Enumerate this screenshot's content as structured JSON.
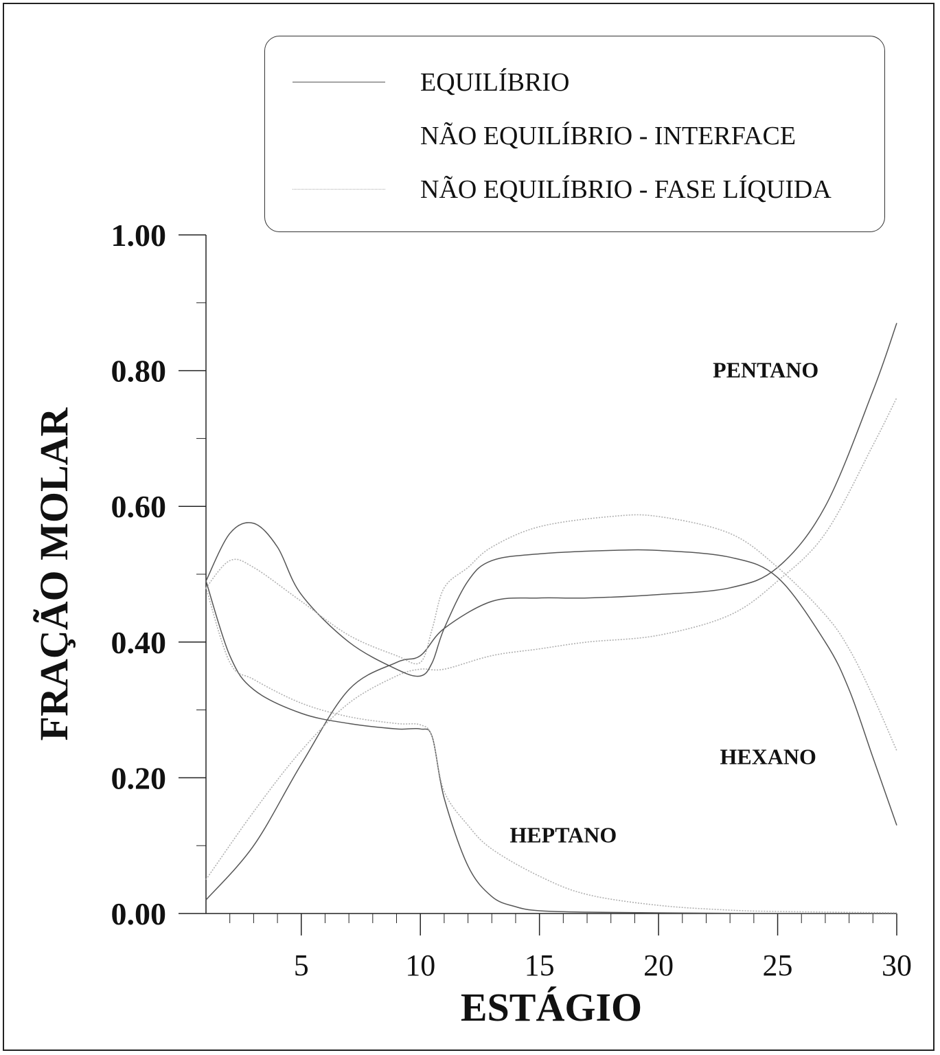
{
  "legend": {
    "items": [
      {
        "label": "EQUILÍBRIO",
        "style": "solid-dark"
      },
      {
        "label": "NÃO EQUILÍBRIO - INTERFACE",
        "style": "none"
      },
      {
        "label": "NÃO EQUILÍBRIO - FASE LÍQUIDA",
        "style": "dotted-light"
      }
    ]
  },
  "chart_data": {
    "type": "line",
    "xlabel": "ESTÁGIO",
    "ylabel": "FRAÇÃO MOLAR",
    "xlim": [
      1,
      30
    ],
    "ylim": [
      0,
      1
    ],
    "x_ticks": [
      5,
      10,
      15,
      20,
      25,
      30
    ],
    "y_ticks": [
      0.0,
      0.2,
      0.4,
      0.6,
      0.8,
      1.0
    ],
    "y_tick_labels": [
      "0.00",
      "0.20",
      "0.40",
      "0.60",
      "0.80",
      "1.00"
    ],
    "grid": false,
    "legend_position": "top-right",
    "annotations": [
      {
        "text": "PENTANO",
        "x": 24.5,
        "y": 0.79
      },
      {
        "text": "HEXANO",
        "x": 24.6,
        "y": 0.22
      },
      {
        "text": "HEPTANO",
        "x": 16.0,
        "y": 0.105
      }
    ],
    "colors": {
      "equilibrio": "#555555",
      "interface": "#777777",
      "fase_liquida": "#b0b0b0"
    },
    "series": [
      {
        "name": "EQUILÍBRIO",
        "component": "PENTANO",
        "style": "solid",
        "points": [
          [
            1,
            0.02
          ],
          [
            3,
            0.1
          ],
          [
            5,
            0.22
          ],
          [
            7,
            0.33
          ],
          [
            9,
            0.37
          ],
          [
            10,
            0.38
          ],
          [
            11,
            0.42
          ],
          [
            13,
            0.46
          ],
          [
            15,
            0.465
          ],
          [
            17,
            0.465
          ],
          [
            20,
            0.47
          ],
          [
            23,
            0.48
          ],
          [
            25,
            0.51
          ],
          [
            27,
            0.6
          ],
          [
            29,
            0.77
          ],
          [
            30,
            0.87
          ]
        ]
      },
      {
        "name": "NÃO EQUILÍBRIO - FASE LÍQUIDA",
        "component": "PENTANO",
        "style": "dotted",
        "points": [
          [
            1,
            0.05
          ],
          [
            3,
            0.15
          ],
          [
            5,
            0.24
          ],
          [
            7,
            0.31
          ],
          [
            9,
            0.35
          ],
          [
            10,
            0.36
          ],
          [
            11,
            0.36
          ],
          [
            13,
            0.38
          ],
          [
            15,
            0.39
          ],
          [
            17,
            0.4
          ],
          [
            20,
            0.41
          ],
          [
            23,
            0.44
          ],
          [
            25,
            0.49
          ],
          [
            27,
            0.56
          ],
          [
            29,
            0.69
          ],
          [
            30,
            0.76
          ]
        ]
      },
      {
        "name": "EQUILÍBRIO",
        "component": "HEXANO",
        "style": "solid",
        "points": [
          [
            1,
            0.49
          ],
          [
            2,
            0.56
          ],
          [
            3,
            0.575
          ],
          [
            4,
            0.54
          ],
          [
            5,
            0.47
          ],
          [
            7,
            0.4
          ],
          [
            9,
            0.36
          ],
          [
            10,
            0.35
          ],
          [
            10.5,
            0.37
          ],
          [
            11,
            0.42
          ],
          [
            12,
            0.49
          ],
          [
            13,
            0.52
          ],
          [
            15,
            0.53
          ],
          [
            18,
            0.535
          ],
          [
            20,
            0.535
          ],
          [
            23,
            0.525
          ],
          [
            25,
            0.495
          ],
          [
            27,
            0.4
          ],
          [
            28,
            0.33
          ],
          [
            29,
            0.23
          ],
          [
            30,
            0.13
          ]
        ]
      },
      {
        "name": "NÃO EQUILÍBRIO - FASE LÍQUIDA",
        "component": "HEXANO",
        "style": "dotted",
        "points": [
          [
            1,
            0.48
          ],
          [
            2,
            0.52
          ],
          [
            3,
            0.51
          ],
          [
            5,
            0.46
          ],
          [
            7,
            0.41
          ],
          [
            9,
            0.38
          ],
          [
            10,
            0.37
          ],
          [
            10.5,
            0.42
          ],
          [
            11,
            0.48
          ],
          [
            12,
            0.51
          ],
          [
            13,
            0.54
          ],
          [
            15,
            0.57
          ],
          [
            18,
            0.585
          ],
          [
            20,
            0.585
          ],
          [
            23,
            0.56
          ],
          [
            25,
            0.51
          ],
          [
            27,
            0.44
          ],
          [
            28,
            0.39
          ],
          [
            29,
            0.32
          ],
          [
            30,
            0.24
          ]
        ]
      },
      {
        "name": "EQUILÍBRIO",
        "component": "HEPTANO",
        "style": "solid",
        "points": [
          [
            1,
            0.49
          ],
          [
            2,
            0.38
          ],
          [
            3,
            0.33
          ],
          [
            5,
            0.295
          ],
          [
            7,
            0.28
          ],
          [
            9,
            0.272
          ],
          [
            10,
            0.272
          ],
          [
            10.5,
            0.26
          ],
          [
            11,
            0.17
          ],
          [
            12,
            0.07
          ],
          [
            13,
            0.025
          ],
          [
            14,
            0.01
          ],
          [
            15,
            0.004
          ],
          [
            17,
            0.002
          ],
          [
            20,
            0.001
          ],
          [
            25,
            0.0
          ],
          [
            30,
            0.0
          ]
        ]
      },
      {
        "name": "NÃO EQUILÍBRIO - FASE LÍQUIDA",
        "component": "HEPTANO",
        "style": "dotted",
        "points": [
          [
            1,
            0.48
          ],
          [
            2,
            0.37
          ],
          [
            3,
            0.345
          ],
          [
            5,
            0.31
          ],
          [
            7,
            0.29
          ],
          [
            9,
            0.28
          ],
          [
            10,
            0.278
          ],
          [
            10.5,
            0.26
          ],
          [
            11,
            0.18
          ],
          [
            12,
            0.13
          ],
          [
            13,
            0.095
          ],
          [
            15,
            0.055
          ],
          [
            17,
            0.028
          ],
          [
            20,
            0.012
          ],
          [
            23,
            0.005
          ],
          [
            25,
            0.003
          ],
          [
            30,
            0.001
          ]
        ]
      }
    ]
  }
}
